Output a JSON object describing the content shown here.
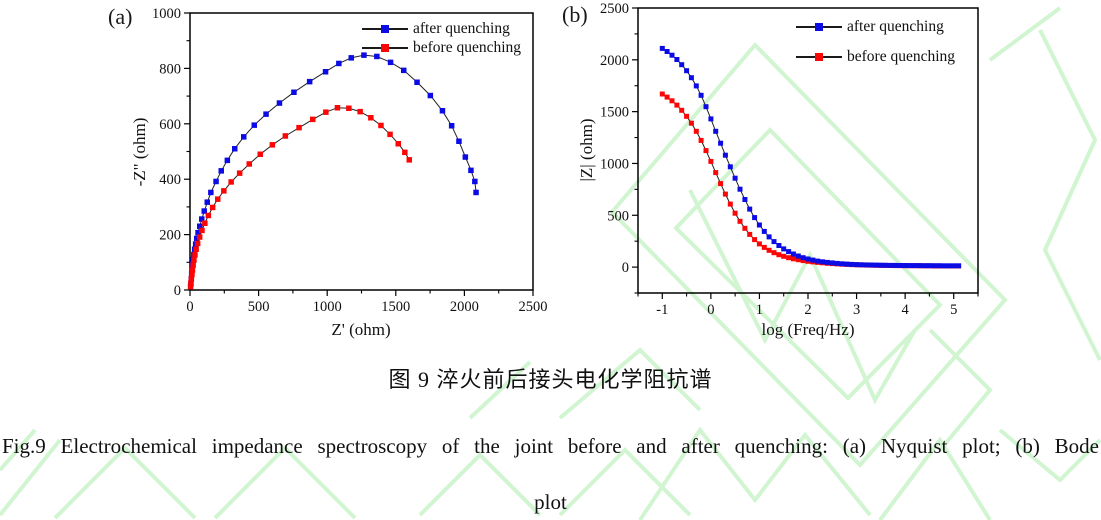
{
  "figure": {
    "panel_a_label": "(a)",
    "panel_b_label": "(b)",
    "caption_zh": "图 9  淬火前后接头电化学阻抗谱",
    "caption_en_line1": "Fig.9 Electrochemical impedance spectroscopy of the joint before and after quenching: (a) Nyquist plot; (b) Bode",
    "caption_en_line2": "plot"
  },
  "legend": {
    "after_label": "after quenching",
    "before_label": "before quenching"
  },
  "colors": {
    "after_quenching": "#0b0be6",
    "before_quenching": "#fb0606",
    "curve_line": "#222222",
    "axis": "#000000",
    "watermark": "#c9f3c9"
  },
  "chart_data": [
    {
      "id": "nyquist",
      "type": "scatter",
      "panel": "(a)",
      "xlabel": "Z' (ohm)",
      "ylabel": "-Z\" (ohm)",
      "xlim": [
        0,
        2500
      ],
      "ylim": [
        0,
        1000
      ],
      "xticks": [
        0,
        500,
        1000,
        1500,
        2000,
        2500
      ],
      "yticks": [
        0,
        200,
        400,
        600,
        800,
        1000
      ],
      "x_minor_step": 250,
      "y_minor_step": 100,
      "grid": false,
      "legend_position": "top-right-inside",
      "series": [
        {
          "name": "after quenching",
          "color": "#0b0be6",
          "points": [
            [
              6,
              22
            ],
            [
              9,
              40
            ],
            [
              12,
              58
            ],
            [
              15,
              75
            ],
            [
              19,
              93
            ],
            [
              23,
              110
            ],
            [
              28,
              128
            ],
            [
              34,
              147
            ],
            [
              41,
              166
            ],
            [
              49,
              186
            ],
            [
              59,
              207
            ],
            [
              71,
              230
            ],
            [
              86,
              256
            ],
            [
              104,
              285
            ],
            [
              126,
              317
            ],
            [
              152,
              352
            ],
            [
              190,
              392
            ],
            [
              228,
              430
            ],
            [
              272,
              468
            ],
            [
              326,
              510
            ],
            [
              392,
              553
            ],
            [
              468,
              595
            ],
            [
              554,
              635
            ],
            [
              652,
              675
            ],
            [
              758,
              714
            ],
            [
              872,
              752
            ],
            [
              988,
              788
            ],
            [
              1085,
              818
            ],
            [
              1175,
              838
            ],
            [
              1268,
              848
            ],
            [
              1362,
              843
            ],
            [
              1462,
              822
            ],
            [
              1558,
              793
            ],
            [
              1655,
              750
            ],
            [
              1752,
              702
            ],
            [
              1840,
              647
            ],
            [
              1907,
              593
            ],
            [
              1960,
              537
            ],
            [
              2007,
              480
            ],
            [
              2048,
              432
            ],
            [
              2076,
              392
            ],
            [
              2085,
              352
            ]
          ]
        },
        {
          "name": "before quenching",
          "color": "#fb0606",
          "points": [
            [
              4,
              12
            ],
            [
              7,
              25
            ],
            [
              10,
              40
            ],
            [
              14,
              56
            ],
            [
              18,
              72
            ],
            [
              23,
              90
            ],
            [
              29,
              108
            ],
            [
              36,
              127
            ],
            [
              45,
              147
            ],
            [
              56,
              168
            ],
            [
              70,
              191
            ],
            [
              87,
              215
            ],
            [
              108,
              241
            ],
            [
              134,
              269
            ],
            [
              165,
              298
            ],
            [
              202,
              328
            ],
            [
              247,
              358
            ],
            [
              300,
              390
            ],
            [
              362,
              422
            ],
            [
              432,
              455
            ],
            [
              512,
              490
            ],
            [
              600,
              524
            ],
            [
              695,
              556
            ],
            [
              795,
              586
            ],
            [
              895,
              616
            ],
            [
              990,
              642
            ],
            [
              1075,
              658
            ],
            [
              1158,
              656
            ],
            [
              1240,
              644
            ],
            [
              1318,
              622
            ],
            [
              1392,
              594
            ],
            [
              1458,
              562
            ],
            [
              1518,
              528
            ],
            [
              1566,
              497
            ],
            [
              1598,
              470
            ]
          ]
        }
      ]
    },
    {
      "id": "bode",
      "type": "scatter",
      "panel": "(b)",
      "xlabel": "log (Freq/Hz)",
      "ylabel": "|Z| (ohm)",
      "xlim": [
        -1.5,
        5.5
      ],
      "ylim": [
        -250,
        2500
      ],
      "xticks": [
        -1,
        0,
        1,
        2,
        3,
        4,
        5
      ],
      "yticks": [
        0,
        500,
        1000,
        1500,
        2000,
        2500
      ],
      "x_minor_step": 0.5,
      "y_minor_step": 250,
      "grid": false,
      "legend_position": "top-right-inside",
      "series": [
        {
          "name": "before quenching",
          "color": "#fb0606",
          "x_start": -1.0,
          "x_step": 0.1,
          "values": [
            1670,
            1640,
            1605,
            1563,
            1513,
            1455,
            1388,
            1310,
            1222,
            1124,
            1020,
            912,
            806,
            704,
            608,
            520,
            442,
            374,
            315,
            265,
            224,
            190,
            162,
            139,
            120,
            104,
            91,
            80,
            71,
            63,
            56,
            50,
            45,
            41,
            37,
            34,
            31,
            28,
            26,
            24,
            22,
            21,
            19,
            18,
            17,
            16,
            16,
            15,
            14,
            14,
            13,
            13,
            13,
            12,
            12,
            12,
            11,
            11,
            11,
            11,
            11,
            11
          ]
        },
        {
          "name": "after quenching",
          "color": "#0b0be6",
          "x_start": -1.0,
          "x_step": 0.1,
          "values": [
            2110,
            2080,
            2045,
            2003,
            1953,
            1895,
            1827,
            1748,
            1658,
            1548,
            1430,
            1310,
            1195,
            1080,
            968,
            858,
            752,
            652,
            560,
            478,
            406,
            344,
            291,
            246,
            208,
            176,
            149,
            126,
            107,
            91,
            78,
            67,
            58,
            51,
            45,
            40,
            36,
            32,
            29,
            26,
            24,
            22,
            21,
            20,
            19,
            18,
            17,
            16,
            16,
            15,
            15,
            14,
            14,
            14,
            13,
            13,
            13,
            13,
            12,
            12,
            12,
            12
          ]
        }
      ]
    }
  ]
}
